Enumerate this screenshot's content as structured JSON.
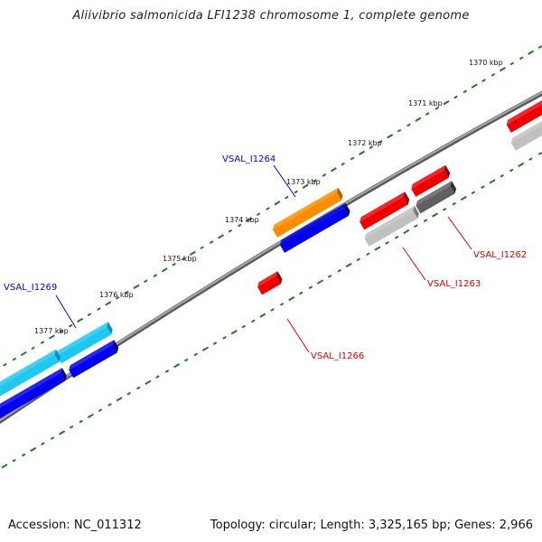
{
  "title": "Aliivibrio salmonicida LFI1238 chromosome 1, complete genome",
  "footer": {
    "accession": "Accession: NC_011312",
    "summary": "Topology: circular; Length: 3,325,165 bp; Genes: 2,966"
  },
  "ruler_labels": [
    "1370 kbp",
    "1371 kbp",
    "1372 kbp",
    "1373 kbp",
    "1374 kbp",
    "1375 kbp",
    "1376 kbp",
    "1377 kbp"
  ],
  "gene_labels": [
    {
      "name": "VSAL_I1264",
      "strand": "forward"
    },
    {
      "name": "VSAL_I1269",
      "strand": "forward"
    },
    {
      "name": "VSAL_I1262",
      "strand": "reverse"
    },
    {
      "name": "VSAL_I1263",
      "strand": "reverse"
    },
    {
      "name": "VSAL_I1266",
      "strand": "reverse"
    }
  ],
  "colors": {
    "backbone": "#808080",
    "ticks": "#1f7a1f",
    "forward_label": "#0000dd",
    "reverse_label": "#dd0000",
    "cds_orange": "#ff8c00",
    "cds_blue": "#0000ee",
    "cds_cyan": "#1ec8f0",
    "cds_red": "#ee0000",
    "cds_lightgray": "#c0c0c0",
    "cds_darkgray": "#606060"
  }
}
